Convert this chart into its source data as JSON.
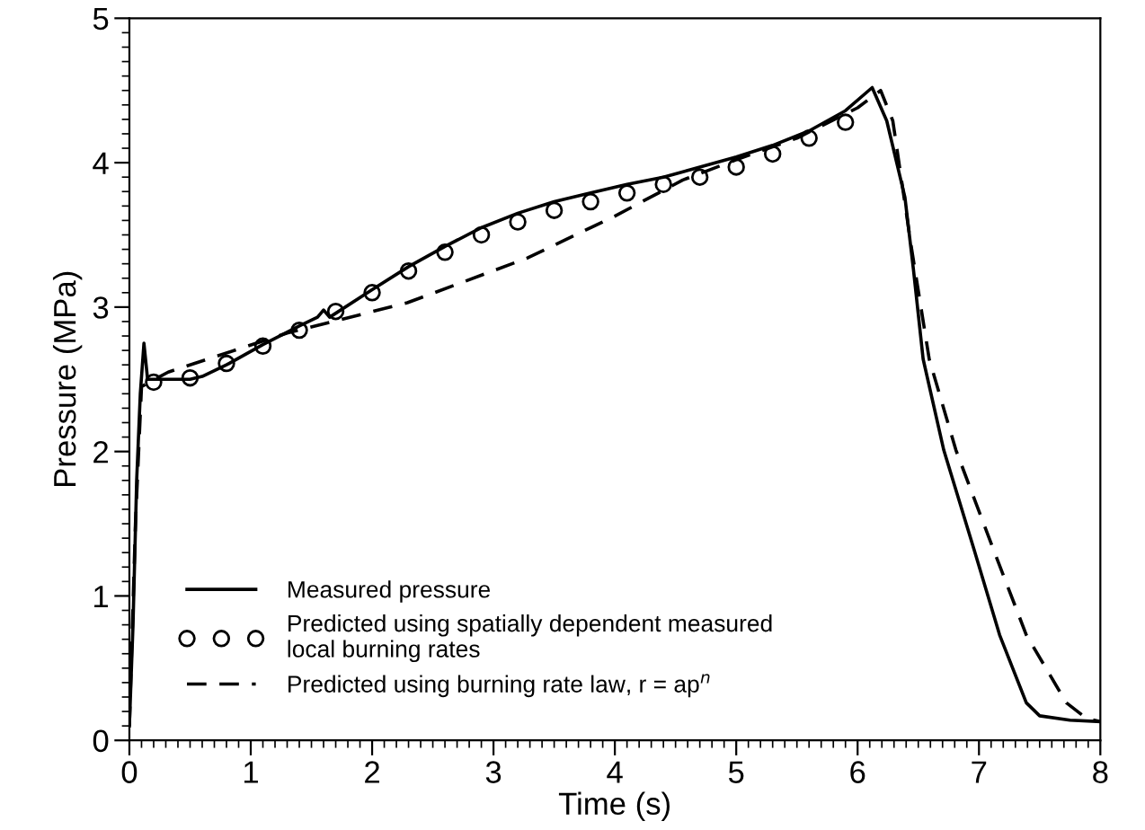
{
  "chart_data": {
    "type": "line",
    "xlabel": "Time (s)",
    "ylabel": "Pressure (MPa)",
    "xlim": [
      0,
      8
    ],
    "ylim": [
      0,
      5
    ],
    "xticks": [
      0,
      {
        "value": 0.1,
        "label": null
      },
      {
        "value": 0.2,
        "label": null
      },
      {
        "value": 0.3,
        "label": null
      },
      {
        "value": 0.4,
        "label": null
      },
      {
        "value": 0.5,
        "label": null
      },
      {
        "value": 0.6,
        "label": null
      },
      {
        "value": 0.7,
        "label": null
      },
      {
        "value": 0.8,
        "label": null
      },
      {
        "value": 0.9,
        "label": null
      },
      1,
      {
        "value": 1.1,
        "label": null
      },
      {
        "value": 1.2,
        "label": null
      },
      {
        "value": 1.3,
        "label": null
      },
      {
        "value": 1.4,
        "label": null
      },
      {
        "value": 1.5,
        "label": null
      },
      {
        "value": 1.6,
        "label": null
      },
      {
        "value": 1.7,
        "label": null
      },
      {
        "value": 1.8,
        "label": null
      },
      {
        "value": 1.9,
        "label": null
      },
      2,
      {
        "value": 2.1,
        "label": null
      },
      {
        "value": 2.2,
        "label": null
      },
      {
        "value": 2.3,
        "label": null
      },
      {
        "value": 2.4,
        "label": null
      },
      {
        "value": 2.5,
        "label": null
      },
      {
        "value": 2.6,
        "label": null
      },
      {
        "value": 2.7,
        "label": null
      },
      {
        "value": 2.8,
        "label": null
      },
      {
        "value": 2.9,
        "label": null
      },
      3,
      {
        "value": 3.1,
        "label": null
      },
      {
        "value": 3.2,
        "label": null
      },
      {
        "value": 3.3,
        "label": null
      },
      {
        "value": 3.4,
        "label": null
      },
      {
        "value": 3.5,
        "label": null
      },
      {
        "value": 3.6,
        "label": null
      },
      {
        "value": 3.7,
        "label": null
      },
      {
        "value": 3.8,
        "label": null
      },
      {
        "value": 3.9,
        "label": null
      },
      4,
      {
        "value": 4.1,
        "label": null
      },
      {
        "value": 4.2,
        "label": null
      },
      {
        "value": 4.3,
        "label": null
      },
      {
        "value": 4.4,
        "label": null
      },
      {
        "value": 4.5,
        "label": null
      },
      {
        "value": 4.6,
        "label": null
      },
      {
        "value": 4.7,
        "label": null
      },
      {
        "value": 4.8,
        "label": null
      },
      {
        "value": 4.9,
        "label": null
      },
      5,
      {
        "value": 5.1,
        "label": null
      },
      {
        "value": 5.2,
        "label": null
      },
      {
        "value": 5.3,
        "label": null
      },
      {
        "value": 5.4,
        "label": null
      },
      {
        "value": 5.5,
        "label": null
      },
      {
        "value": 5.6,
        "label": null
      },
      {
        "value": 5.7,
        "label": null
      },
      {
        "value": 5.8,
        "label": null
      },
      {
        "value": 5.9,
        "label": null
      },
      6,
      {
        "value": 6.1,
        "label": null
      },
      {
        "value": 6.2,
        "label": null
      },
      {
        "value": 6.3,
        "label": null
      },
      {
        "value": 6.4,
        "label": null
      },
      {
        "value": 6.5,
        "label": null
      },
      {
        "value": 6.6,
        "label": null
      },
      {
        "value": 6.7,
        "label": null
      },
      {
        "value": 6.8,
        "label": null
      },
      {
        "value": 6.9,
        "label": null
      },
      7,
      {
        "value": 7.1,
        "label": null
      },
      {
        "value": 7.2,
        "label": null
      },
      {
        "value": 7.3,
        "label": null
      },
      {
        "value": 7.4,
        "label": null
      },
      {
        "value": 7.5,
        "label": null
      },
      {
        "value": 7.6,
        "label": null
      },
      {
        "value": 7.7,
        "label": null
      },
      {
        "value": 7.8,
        "label": null
      },
      {
        "value": 7.9,
        "label": null
      },
      8
    ],
    "yticks": [
      0,
      {
        "value": 0.1,
        "label": null
      },
      {
        "value": 0.2,
        "label": null
      },
      {
        "value": 0.3,
        "label": null
      },
      {
        "value": 0.4,
        "label": null
      },
      {
        "value": 0.5,
        "label": null
      },
      {
        "value": 0.6,
        "label": null
      },
      {
        "value": 0.7,
        "label": null
      },
      {
        "value": 0.8,
        "label": null
      },
      {
        "value": 0.9,
        "label": null
      },
      1,
      {
        "value": 1.1,
        "label": null
      },
      {
        "value": 1.2,
        "label": null
      },
      {
        "value": 1.3,
        "label": null
      },
      {
        "value": 1.4,
        "label": null
      },
      {
        "value": 1.5,
        "label": null
      },
      {
        "value": 1.6,
        "label": null
      },
      {
        "value": 1.7,
        "label": null
      },
      {
        "value": 1.8,
        "label": null
      },
      {
        "value": 1.9,
        "label": null
      },
      2,
      {
        "value": 2.1,
        "label": null
      },
      {
        "value": 2.2,
        "label": null
      },
      {
        "value": 2.3,
        "label": null
      },
      {
        "value": 2.4,
        "label": null
      },
      {
        "value": 2.5,
        "label": null
      },
      {
        "value": 2.6,
        "label": null
      },
      {
        "value": 2.7,
        "label": null
      },
      {
        "value": 2.8,
        "label": null
      },
      {
        "value": 2.9,
        "label": null
      },
      3,
      {
        "value": 3.1,
        "label": null
      },
      {
        "value": 3.2,
        "label": null
      },
      {
        "value": 3.3,
        "label": null
      },
      {
        "value": 3.4,
        "label": null
      },
      {
        "value": 3.5,
        "label": null
      },
      {
        "value": 3.6,
        "label": null
      },
      {
        "value": 3.7,
        "label": null
      },
      {
        "value": 3.8,
        "label": null
      },
      {
        "value": 3.9,
        "label": null
      },
      4,
      {
        "value": 4.1,
        "label": null
      },
      {
        "value": 4.2,
        "label": null
      },
      {
        "value": 4.3,
        "label": null
      },
      {
        "value": 4.4,
        "label": null
      },
      {
        "value": 4.5,
        "label": null
      },
      {
        "value": 4.6,
        "label": null
      },
      {
        "value": 4.7,
        "label": null
      },
      {
        "value": 4.8,
        "label": null
      },
      {
        "value": 4.9,
        "label": null
      },
      5
    ],
    "grid": false,
    "legend": "bottom left",
    "series": [
      {
        "name": "Measured pressure",
        "color": "#000000",
        "line_style": "solid",
        "marker": "none",
        "x": [
          0,
          0.03,
          0.06,
          0.09,
          0.12,
          0.15,
          0.2,
          0.5,
          0.6,
          0.8,
          1.1,
          1.4,
          1.55,
          1.6,
          1.65,
          2.0,
          2.3,
          2.6,
          2.9,
          3.2,
          3.5,
          3.8,
          4.1,
          4.4,
          4.7,
          5.0,
          5.3,
          5.6,
          5.9,
          6.12,
          6.24,
          6.39,
          6.46,
          6.54,
          6.71,
          6.96,
          7.17,
          7.39,
          7.5,
          7.75,
          8.0
        ],
        "values": [
          0.1,
          0.8,
          1.8,
          2.4,
          2.75,
          2.5,
          2.5,
          2.5,
          2.52,
          2.6,
          2.74,
          2.87,
          2.93,
          2.98,
          2.93,
          3.12,
          3.28,
          3.42,
          3.55,
          3.65,
          3.73,
          3.79,
          3.85,
          3.9,
          3.97,
          4.04,
          4.12,
          4.22,
          4.36,
          4.52,
          4.29,
          3.76,
          3.26,
          2.64,
          2.01,
          1.32,
          0.73,
          0.26,
          0.17,
          0.14,
          0.13
        ]
      },
      {
        "name": "Predicted using spatially dependent measured\nlocal burning rates",
        "type": "scatter",
        "color": "#000000",
        "marker": "circle",
        "x": [
          0.2,
          0.5,
          0.8,
          1.1,
          1.4,
          1.7,
          2.0,
          2.3,
          2.6,
          2.9,
          3.2,
          3.5,
          3.8,
          4.1,
          4.4,
          4.7,
          5.0,
          5.3,
          5.6,
          5.9
        ],
        "values": [
          2.48,
          2.51,
          2.61,
          2.73,
          2.84,
          2.97,
          3.1,
          3.25,
          3.38,
          3.5,
          3.59,
          3.67,
          3.73,
          3.79,
          3.85,
          3.9,
          3.97,
          4.06,
          4.17,
          4.28
        ]
      },
      {
        "name": "Predicted using burning rate law, r = ap$^{n}$",
        "color": "#000000",
        "line_style": "dashed",
        "marker": "none",
        "x": [
          0,
          0.05,
          0.1,
          0.32,
          1.3,
          2.29,
          3.28,
          4.0,
          4.56,
          5.0,
          5.5,
          6.0,
          6.19,
          6.29,
          6.44,
          6.59,
          6.81,
          7.12,
          7.39,
          7.72,
          7.89,
          8.0
        ],
        "values": [
          0.1,
          1.5,
          2.45,
          2.55,
          2.82,
          3.03,
          3.34,
          3.63,
          3.88,
          4.02,
          4.17,
          4.38,
          4.5,
          4.29,
          3.43,
          2.64,
          2.01,
          1.32,
          0.73,
          0.26,
          0.15,
          0.13
        ]
      }
    ]
  }
}
